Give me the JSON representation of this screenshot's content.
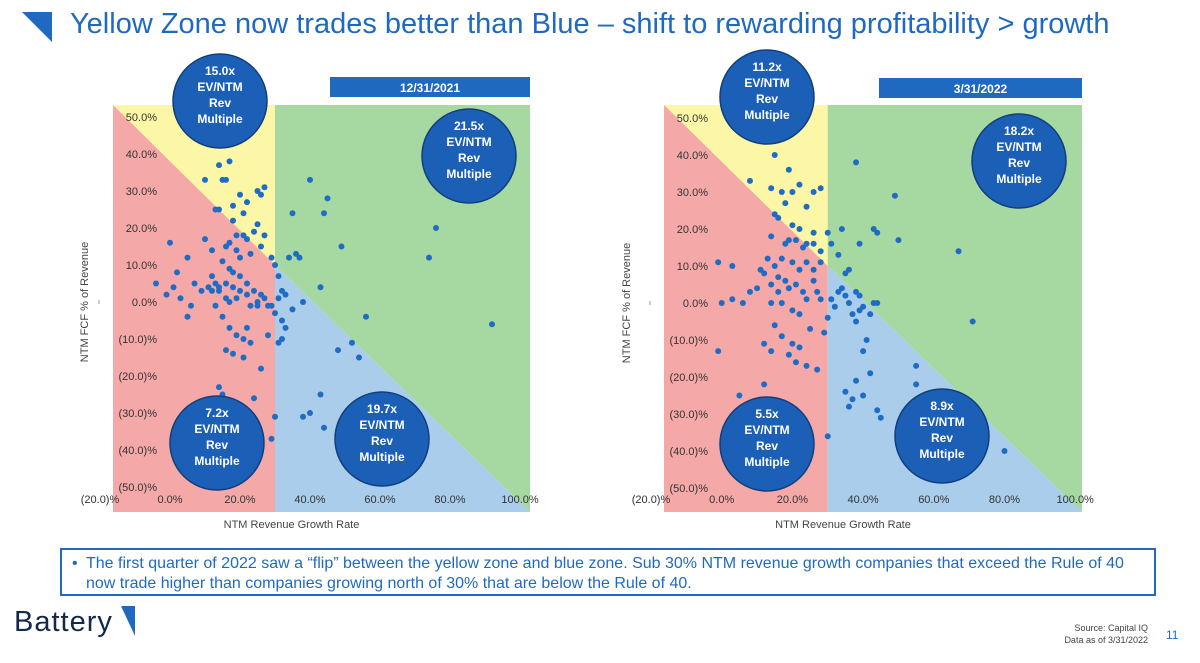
{
  "title": "Yellow Zone now trades better than Blue – shift to rewarding profitability > growth",
  "colors": {
    "brand_blue": "#1f6ac0",
    "bubble_blue": "#1b5fb6",
    "point_blue": "#1f6cc4",
    "zone_red": "#f4a9a8",
    "zone_yellow": "#fbf7a6",
    "zone_green": "#a6d9a2",
    "zone_blue": "#a9cdea"
  },
  "chart_data": [
    {
      "type": "scatter",
      "date_label": "12/31/2021",
      "xlabel": "NTM Revenue Growth Rate",
      "ylabel": "NTM FCF % of Revenue",
      "xlim": [
        -0.2,
        1.0
      ],
      "ylim": [
        -0.5,
        0.5
      ],
      "x_ticks": [
        "(20.0)%",
        "0.0%",
        "20.0%",
        "40.0%",
        "60.0%",
        "80.0%",
        "100.0%"
      ],
      "y_ticks": [
        "50.0%",
        "40.0%",
        "30.0%",
        "20.0%",
        "10.0%",
        "0.0%",
        "(10.0)%",
        "(20.0)%",
        "(30.0)%",
        "(40.0)%",
        "(50.0)%"
      ],
      "zones": [
        {
          "zone": "red",
          "multiple": "7.2x",
          "label": "EV/NTM Rev Multiple"
        },
        {
          "zone": "yellow",
          "multiple": "15.0x",
          "label": "EV/NTM Rev Multiple"
        },
        {
          "zone": "green",
          "multiple": "21.5x",
          "label": "EV/NTM Rev Multiple"
        },
        {
          "zone": "blue",
          "multiple": "19.7x",
          "label": "EV/NTM Rev Multiple"
        }
      ],
      "points": [
        [
          0.17,
          0.38
        ],
        [
          0.14,
          0.37
        ],
        [
          0.15,
          0.33
        ],
        [
          0.16,
          0.33
        ],
        [
          0.1,
          0.33
        ],
        [
          0.27,
          0.31
        ],
        [
          0.25,
          0.3
        ],
        [
          0.26,
          0.29
        ],
        [
          0.2,
          0.29
        ],
        [
          0.22,
          0.27
        ],
        [
          0.18,
          0.26
        ],
        [
          0.13,
          0.25
        ],
        [
          0.21,
          0.24
        ],
        [
          0.14,
          0.25
        ],
        [
          0.18,
          0.22
        ],
        [
          0.25,
          0.21
        ],
        [
          0.24,
          0.19
        ],
        [
          0.19,
          0.18
        ],
        [
          0.21,
          0.18
        ],
        [
          0.27,
          0.18
        ],
        [
          0.17,
          0.16
        ],
        [
          0.16,
          0.15
        ],
        [
          0.22,
          0.17
        ],
        [
          0.26,
          0.15
        ],
        [
          0.19,
          0.14
        ],
        [
          0.2,
          0.12
        ],
        [
          0.23,
          0.13
        ],
        [
          0.12,
          0.14
        ],
        [
          0.1,
          0.17
        ],
        [
          0.15,
          0.11
        ],
        [
          0.17,
          0.09
        ],
        [
          0.18,
          0.08
        ],
        [
          0.2,
          0.07
        ],
        [
          0.12,
          0.07
        ],
        [
          0.13,
          0.05
        ],
        [
          0.14,
          0.04
        ],
        [
          0.16,
          0.05
        ],
        [
          0.18,
          0.04
        ],
        [
          0.2,
          0.03
        ],
        [
          0.22,
          0.05
        ],
        [
          0.24,
          0.03
        ],
        [
          0.26,
          0.02
        ],
        [
          0.27,
          0.01
        ],
        [
          0.25,
          0.0
        ],
        [
          0.23,
          -0.01
        ],
        [
          0.22,
          0.02
        ],
        [
          0.19,
          0.01
        ],
        [
          0.16,
          0.01
        ],
        [
          0.14,
          0.03
        ],
        [
          0.12,
          0.03
        ],
        [
          0.11,
          0.04
        ],
        [
          0.09,
          0.03
        ],
        [
          0.07,
          0.05
        ],
        [
          0.06,
          -0.01
        ],
        [
          0.03,
          0.01
        ],
        [
          0.01,
          0.04
        ],
        [
          -0.01,
          0.02
        ],
        [
          0.02,
          0.08
        ],
        [
          0.05,
          0.12
        ],
        [
          0.0,
          0.16
        ],
        [
          0.05,
          -0.04
        ],
        [
          -0.04,
          0.05
        ],
        [
          0.13,
          -0.01
        ],
        [
          0.15,
          -0.04
        ],
        [
          0.17,
          -0.07
        ],
        [
          0.19,
          -0.09
        ],
        [
          0.21,
          -0.1
        ],
        [
          0.23,
          -0.11
        ],
        [
          0.16,
          -0.13
        ],
        [
          0.18,
          -0.14
        ],
        [
          0.21,
          -0.15
        ],
        [
          0.15,
          -0.25
        ],
        [
          0.24,
          -0.26
        ],
        [
          0.14,
          -0.23
        ],
        [
          0.28,
          -0.09
        ],
        [
          0.29,
          0.12
        ],
        [
          0.3,
          0.1
        ],
        [
          0.31,
          0.07
        ],
        [
          0.32,
          0.03
        ],
        [
          0.33,
          0.02
        ],
        [
          0.31,
          0.01
        ],
        [
          0.29,
          -0.01
        ],
        [
          0.3,
          -0.03
        ],
        [
          0.32,
          -0.05
        ],
        [
          0.33,
          -0.07
        ],
        [
          0.35,
          -0.02
        ],
        [
          0.38,
          0.0
        ],
        [
          0.34,
          0.12
        ],
        [
          0.36,
          0.13
        ],
        [
          0.37,
          0.12
        ],
        [
          0.35,
          0.24
        ],
        [
          0.4,
          0.33
        ],
        [
          0.44,
          0.24
        ],
        [
          0.45,
          0.28
        ],
        [
          0.49,
          0.15
        ],
        [
          0.43,
          0.04
        ],
        [
          0.48,
          -0.13
        ],
        [
          0.56,
          -0.04
        ],
        [
          0.52,
          -0.11
        ],
        [
          0.54,
          -0.15
        ],
        [
          0.43,
          -0.25
        ],
        [
          0.44,
          -0.34
        ],
        [
          0.4,
          -0.3
        ],
        [
          0.38,
          -0.31
        ],
        [
          0.3,
          -0.31
        ],
        [
          0.29,
          -0.37
        ],
        [
          0.74,
          0.12
        ],
        [
          0.76,
          0.2
        ],
        [
          0.92,
          -0.06
        ],
        [
          0.31,
          -0.11
        ],
        [
          0.32,
          -0.1
        ],
        [
          0.28,
          -0.01
        ],
        [
          0.26,
          -0.18
        ],
        [
          0.25,
          -0.01
        ],
        [
          0.22,
          -0.07
        ],
        [
          0.17,
          0.0
        ]
      ]
    },
    {
      "type": "scatter",
      "date_label": "3/31/2022",
      "xlabel": "NTM Revenue Growth Rate",
      "ylabel": "NTM FCF % of Revenue",
      "xlim": [
        -0.2,
        1.0
      ],
      "ylim": [
        -0.5,
        0.5
      ],
      "x_ticks": [
        "(20.0)%",
        "0.0%",
        "20.0%",
        "40.0%",
        "60.0%",
        "80.0%",
        "100.0%"
      ],
      "y_ticks": [
        "50.0%",
        "40.0%",
        "30.0%",
        "20.0%",
        "10.0%",
        "0.0%",
        "(10.0)%",
        "(20.0)%",
        "(30.0)%",
        "(40.0)%",
        "(50.0)%"
      ],
      "zones": [
        {
          "zone": "red",
          "multiple": "5.5x",
          "label": "EV/NTM Rev Multiple"
        },
        {
          "zone": "yellow",
          "multiple": "11.2x",
          "label": "EV/NTM Rev Multiple"
        },
        {
          "zone": "green",
          "multiple": "18.2x",
          "label": "EV/NTM Rev Multiple"
        },
        {
          "zone": "blue",
          "multiple": "8.9x",
          "label": "EV/NTM Rev Multiple"
        }
      ],
      "points": [
        [
          0.15,
          0.4
        ],
        [
          0.19,
          0.36
        ],
        [
          0.2,
          0.3
        ],
        [
          0.22,
          0.32
        ],
        [
          0.26,
          0.3
        ],
        [
          0.28,
          0.31
        ],
        [
          0.08,
          0.33
        ],
        [
          0.14,
          0.31
        ],
        [
          0.17,
          0.3
        ],
        [
          0.18,
          0.27
        ],
        [
          0.24,
          0.26
        ],
        [
          0.16,
          0.23
        ],
        [
          0.15,
          0.24
        ],
        [
          0.2,
          0.21
        ],
        [
          0.22,
          0.2
        ],
        [
          0.26,
          0.19
        ],
        [
          0.19,
          0.17
        ],
        [
          0.21,
          0.17
        ],
        [
          0.24,
          0.16
        ],
        [
          0.14,
          0.18
        ],
        [
          0.18,
          0.16
        ],
        [
          0.23,
          0.15
        ],
        [
          0.26,
          0.16
        ],
        [
          0.28,
          0.14
        ],
        [
          0.17,
          0.12
        ],
        [
          0.2,
          0.11
        ],
        [
          0.13,
          0.12
        ],
        [
          0.15,
          0.1
        ],
        [
          0.22,
          0.09
        ],
        [
          0.24,
          0.11
        ],
        [
          0.26,
          0.09
        ],
        [
          0.11,
          0.09
        ],
        [
          0.12,
          0.08
        ],
        [
          0.16,
          0.07
        ],
        [
          0.18,
          0.06
        ],
        [
          0.14,
          0.05
        ],
        [
          0.16,
          0.03
        ],
        [
          0.19,
          0.04
        ],
        [
          0.21,
          0.05
        ],
        [
          0.23,
          0.03
        ],
        [
          0.24,
          0.01
        ],
        [
          0.26,
          0.06
        ],
        [
          0.27,
          0.03
        ],
        [
          0.28,
          0.01
        ],
        [
          0.1,
          0.04
        ],
        [
          0.08,
          0.03
        ],
        [
          0.06,
          0.0
        ],
        [
          0.03,
          0.01
        ],
        [
          0.0,
          0.0
        ],
        [
          0.03,
          0.1
        ],
        [
          -0.01,
          0.11
        ],
        [
          0.14,
          0.0
        ],
        [
          0.17,
          0.0
        ],
        [
          0.2,
          -0.02
        ],
        [
          0.22,
          -0.03
        ],
        [
          0.15,
          -0.06
        ],
        [
          0.17,
          -0.09
        ],
        [
          0.2,
          -0.11
        ],
        [
          0.22,
          -0.12
        ],
        [
          0.12,
          -0.11
        ],
        [
          0.14,
          -0.13
        ],
        [
          0.19,
          -0.14
        ],
        [
          0.21,
          -0.16
        ],
        [
          0.24,
          -0.17
        ],
        [
          0.12,
          -0.22
        ],
        [
          0.05,
          -0.25
        ],
        [
          -0.01,
          -0.13
        ],
        [
          0.29,
          -0.08
        ],
        [
          0.3,
          -0.04
        ],
        [
          0.32,
          -0.01
        ],
        [
          0.31,
          0.01
        ],
        [
          0.33,
          0.03
        ],
        [
          0.35,
          0.02
        ],
        [
          0.36,
          0.0
        ],
        [
          0.37,
          -0.03
        ],
        [
          0.38,
          -0.05
        ],
        [
          0.39,
          -0.02
        ],
        [
          0.4,
          -0.01
        ],
        [
          0.42,
          -0.03
        ],
        [
          0.43,
          0.0
        ],
        [
          0.39,
          0.02
        ],
        [
          0.38,
          0.03
        ],
        [
          0.34,
          0.04
        ],
        [
          0.36,
          0.09
        ],
        [
          0.35,
          0.08
        ],
        [
          0.33,
          0.13
        ],
        [
          0.31,
          0.16
        ],
        [
          0.3,
          0.19
        ],
        [
          0.34,
          0.2
        ],
        [
          0.39,
          0.16
        ],
        [
          0.43,
          0.2
        ],
        [
          0.44,
          0.19
        ],
        [
          0.5,
          0.17
        ],
        [
          0.49,
          0.29
        ],
        [
          0.38,
          0.38
        ],
        [
          0.44,
          0.0
        ],
        [
          0.41,
          -0.1
        ],
        [
          0.4,
          -0.13
        ],
        [
          0.42,
          -0.19
        ],
        [
          0.38,
          -0.21
        ],
        [
          0.35,
          -0.24
        ],
        [
          0.36,
          -0.28
        ],
        [
          0.37,
          -0.26
        ],
        [
          0.4,
          -0.25
        ],
        [
          0.44,
          -0.29
        ],
        [
          0.45,
          -0.31
        ],
        [
          0.55,
          -0.17
        ],
        [
          0.55,
          -0.22
        ],
        [
          0.67,
          0.14
        ],
        [
          0.71,
          -0.05
        ],
        [
          0.8,
          -0.4
        ],
        [
          0.3,
          -0.36
        ],
        [
          0.27,
          -0.18
        ],
        [
          0.25,
          -0.07
        ],
        [
          0.28,
          0.11
        ]
      ]
    }
  ],
  "note": "The first quarter of 2022 saw a “flip” between the yellow zone and blue zone. Sub 30% NTM revenue growth companies that exceed the Rule of 40 now trade higher than companies growing north of 30% that are below the Rule of 40.",
  "brand": "Battery",
  "source_line1": "Source: Capital IQ",
  "source_line2": "Data as of 3/31/2022",
  "page_number": "11"
}
